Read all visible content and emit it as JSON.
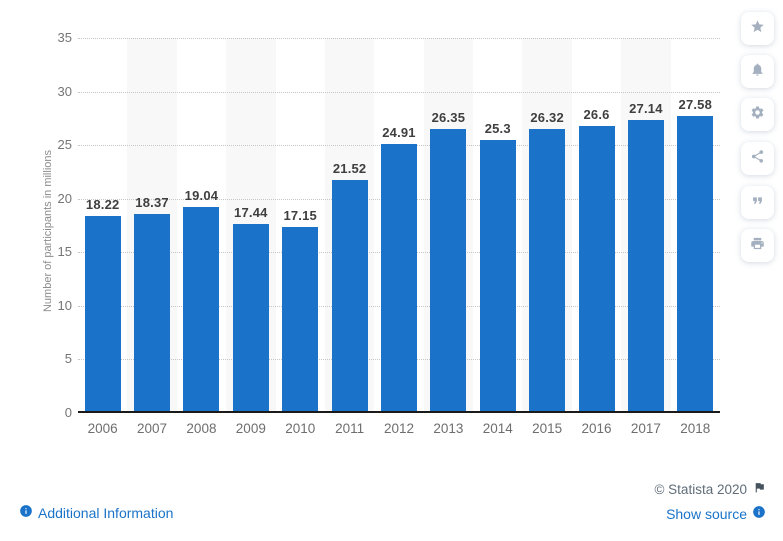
{
  "chart_data": {
    "type": "bar",
    "title": "",
    "categories": [
      "2006",
      "2007",
      "2008",
      "2009",
      "2010",
      "2011",
      "2012",
      "2013",
      "2014",
      "2015",
      "2016",
      "2017",
      "2018"
    ],
    "values": [
      18.22,
      18.37,
      19.04,
      17.44,
      17.15,
      21.52,
      24.91,
      26.35,
      25.3,
      26.32,
      26.6,
      27.14,
      27.58
    ],
    "value_labels": [
      "18.22",
      "18.37",
      "19.04",
      "17.44",
      "17.15",
      "21.52",
      "24.91",
      "26.35",
      "25.3",
      "26.32",
      "26.6",
      "27.14",
      "27.58"
    ],
    "xlabel": "",
    "ylabel": "Number of participants in millions",
    "ylim": [
      0,
      35
    ],
    "ytick_step": 5,
    "yticks": [
      0,
      5,
      10,
      15,
      20,
      25,
      30,
      35
    ],
    "grid": "horizontal-dotted",
    "legend": "none",
    "bar_color": "#1a73c8",
    "stripe_color": "#f8f8f8",
    "striped_categories": [
      "2007",
      "2009",
      "2011",
      "2013",
      "2015",
      "2017"
    ]
  },
  "sidebar": {
    "buttons": [
      {
        "icon": "star-icon"
      },
      {
        "icon": "bell-icon"
      },
      {
        "icon": "gear-icon"
      },
      {
        "icon": "share-icon"
      },
      {
        "icon": "quote-icon"
      },
      {
        "icon": "printer-icon"
      }
    ]
  },
  "footer": {
    "additional_information": "Additional Information",
    "copyright": "© Statista 2020",
    "show_source": "Show source"
  },
  "colors": {
    "bar": "#1a73c8",
    "link": "#1a73c8",
    "axis_text": "#757575",
    "value_label": "#3f3f3f",
    "copyright_text": "#5f6d7a",
    "sidebar_icon": "#a4b0bf"
  }
}
